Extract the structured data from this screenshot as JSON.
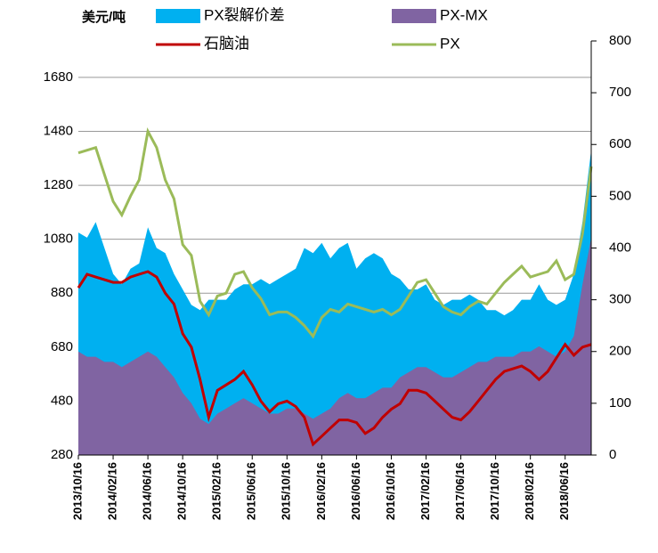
{
  "chart_data": {
    "type": "line",
    "y_label": "美元/吨",
    "x": [
      "2013/10/16",
      "2013/11/16",
      "2013/12/16",
      "2014/01/16",
      "2014/02/16",
      "2014/03/16",
      "2014/04/16",
      "2014/05/16",
      "2014/06/16",
      "2014/07/16",
      "2014/08/16",
      "2014/09/16",
      "2014/10/16",
      "2014/11/16",
      "2014/12/16",
      "2015/01/16",
      "2015/02/16",
      "2015/03/16",
      "2015/04/16",
      "2015/05/16",
      "2015/06/16",
      "2015/07/16",
      "2015/08/16",
      "2015/09/16",
      "2015/10/16",
      "2015/11/16",
      "2015/12/16",
      "2016/01/16",
      "2016/02/16",
      "2016/03/16",
      "2016/04/16",
      "2016/05/16",
      "2016/06/16",
      "2016/07/16",
      "2016/08/16",
      "2016/09/16",
      "2016/10/16",
      "2016/11/16",
      "2016/12/16",
      "2017/01/16",
      "2017/02/16",
      "2017/03/16",
      "2017/04/16",
      "2017/05/16",
      "2017/06/16",
      "2017/07/16",
      "2017/08/16",
      "2017/09/16",
      "2017/10/16",
      "2017/11/16",
      "2017/12/16",
      "2018/01/16",
      "2018/02/16",
      "2018/03/16",
      "2018/04/16",
      "2018/05/16",
      "2018/06/16",
      "2018/07/16",
      "2018/08/16",
      "2018/09/16"
    ],
    "xticks": [
      "2013/10/16",
      "2014/02/16",
      "2014/06/16",
      "2014/10/16",
      "2015/02/16",
      "2015/06/16",
      "2015/10/16",
      "2016/02/16",
      "2016/06/16",
      "2016/10/16",
      "2017/02/16",
      "2017/06/16",
      "2017/10/16",
      "2018/02/16",
      "2018/06/16"
    ],
    "series": [
      {
        "name": "PX裂解价差",
        "color": "#00b0f0",
        "axis": "y2",
        "kind": "area",
        "values": [
          430,
          420,
          450,
          400,
          350,
          330,
          360,
          370,
          440,
          400,
          390,
          350,
          320,
          290,
          280,
          300,
          300,
          300,
          320,
          330,
          330,
          340,
          330,
          340,
          350,
          360,
          400,
          390,
          410,
          380,
          400,
          410,
          360,
          380,
          390,
          380,
          350,
          340,
          320,
          320,
          330,
          300,
          290,
          300,
          300,
          310,
          300,
          280,
          280,
          270,
          280,
          300,
          300,
          330,
          300,
          290,
          300,
          350,
          450,
          590
        ]
      },
      {
        "name": "PX-MX",
        "color": "#8064a2",
        "axis": "y2",
        "kind": "area",
        "values": [
          200,
          190,
          190,
          180,
          180,
          170,
          180,
          190,
          200,
          190,
          170,
          150,
          120,
          100,
          70,
          60,
          80,
          90,
          100,
          110,
          100,
          90,
          80,
          80,
          90,
          90,
          80,
          70,
          80,
          90,
          110,
          120,
          110,
          110,
          120,
          130,
          130,
          150,
          160,
          170,
          170,
          160,
          150,
          150,
          160,
          170,
          180,
          180,
          190,
          190,
          190,
          200,
          200,
          210,
          200,
          190,
          200,
          230,
          330,
          420
        ]
      },
      {
        "name": "石脑油",
        "color": "#c00000",
        "kind": "line",
        "values": [
          900,
          950,
          940,
          930,
          920,
          920,
          940,
          950,
          960,
          940,
          880,
          840,
          730,
          680,
          560,
          420,
          520,
          540,
          560,
          590,
          540,
          480,
          440,
          470,
          480,
          460,
          420,
          320,
          350,
          380,
          410,
          410,
          400,
          360,
          380,
          420,
          450,
          470,
          520,
          520,
          510,
          480,
          450,
          420,
          410,
          440,
          480,
          520,
          560,
          590,
          600,
          610,
          590,
          560,
          590,
          640,
          690,
          650,
          680,
          690
        ]
      },
      {
        "name": "PX",
        "color": "#9bbb59",
        "kind": "line",
        "values": [
          1400,
          1410,
          1420,
          1320,
          1220,
          1170,
          1240,
          1300,
          1480,
          1420,
          1300,
          1230,
          1060,
          1020,
          850,
          800,
          870,
          880,
          950,
          960,
          900,
          860,
          800,
          810,
          810,
          790,
          760,
          720,
          790,
          820,
          810,
          840,
          830,
          820,
          810,
          820,
          800,
          820,
          870,
          920,
          930,
          880,
          830,
          810,
          800,
          830,
          850,
          840,
          880,
          920,
          950,
          980,
          940,
          950,
          960,
          1000,
          930,
          950,
          1100,
          1350
        ]
      }
    ],
    "ylim": [
      280,
      1815
    ],
    "yticks": [
      280,
      480,
      680,
      880,
      1080,
      1280,
      1480,
      1680
    ],
    "y2lim": [
      0,
      800
    ],
    "y2ticks": [
      0,
      100,
      200,
      300,
      400,
      500,
      600,
      700,
      800
    ],
    "grid": true
  }
}
